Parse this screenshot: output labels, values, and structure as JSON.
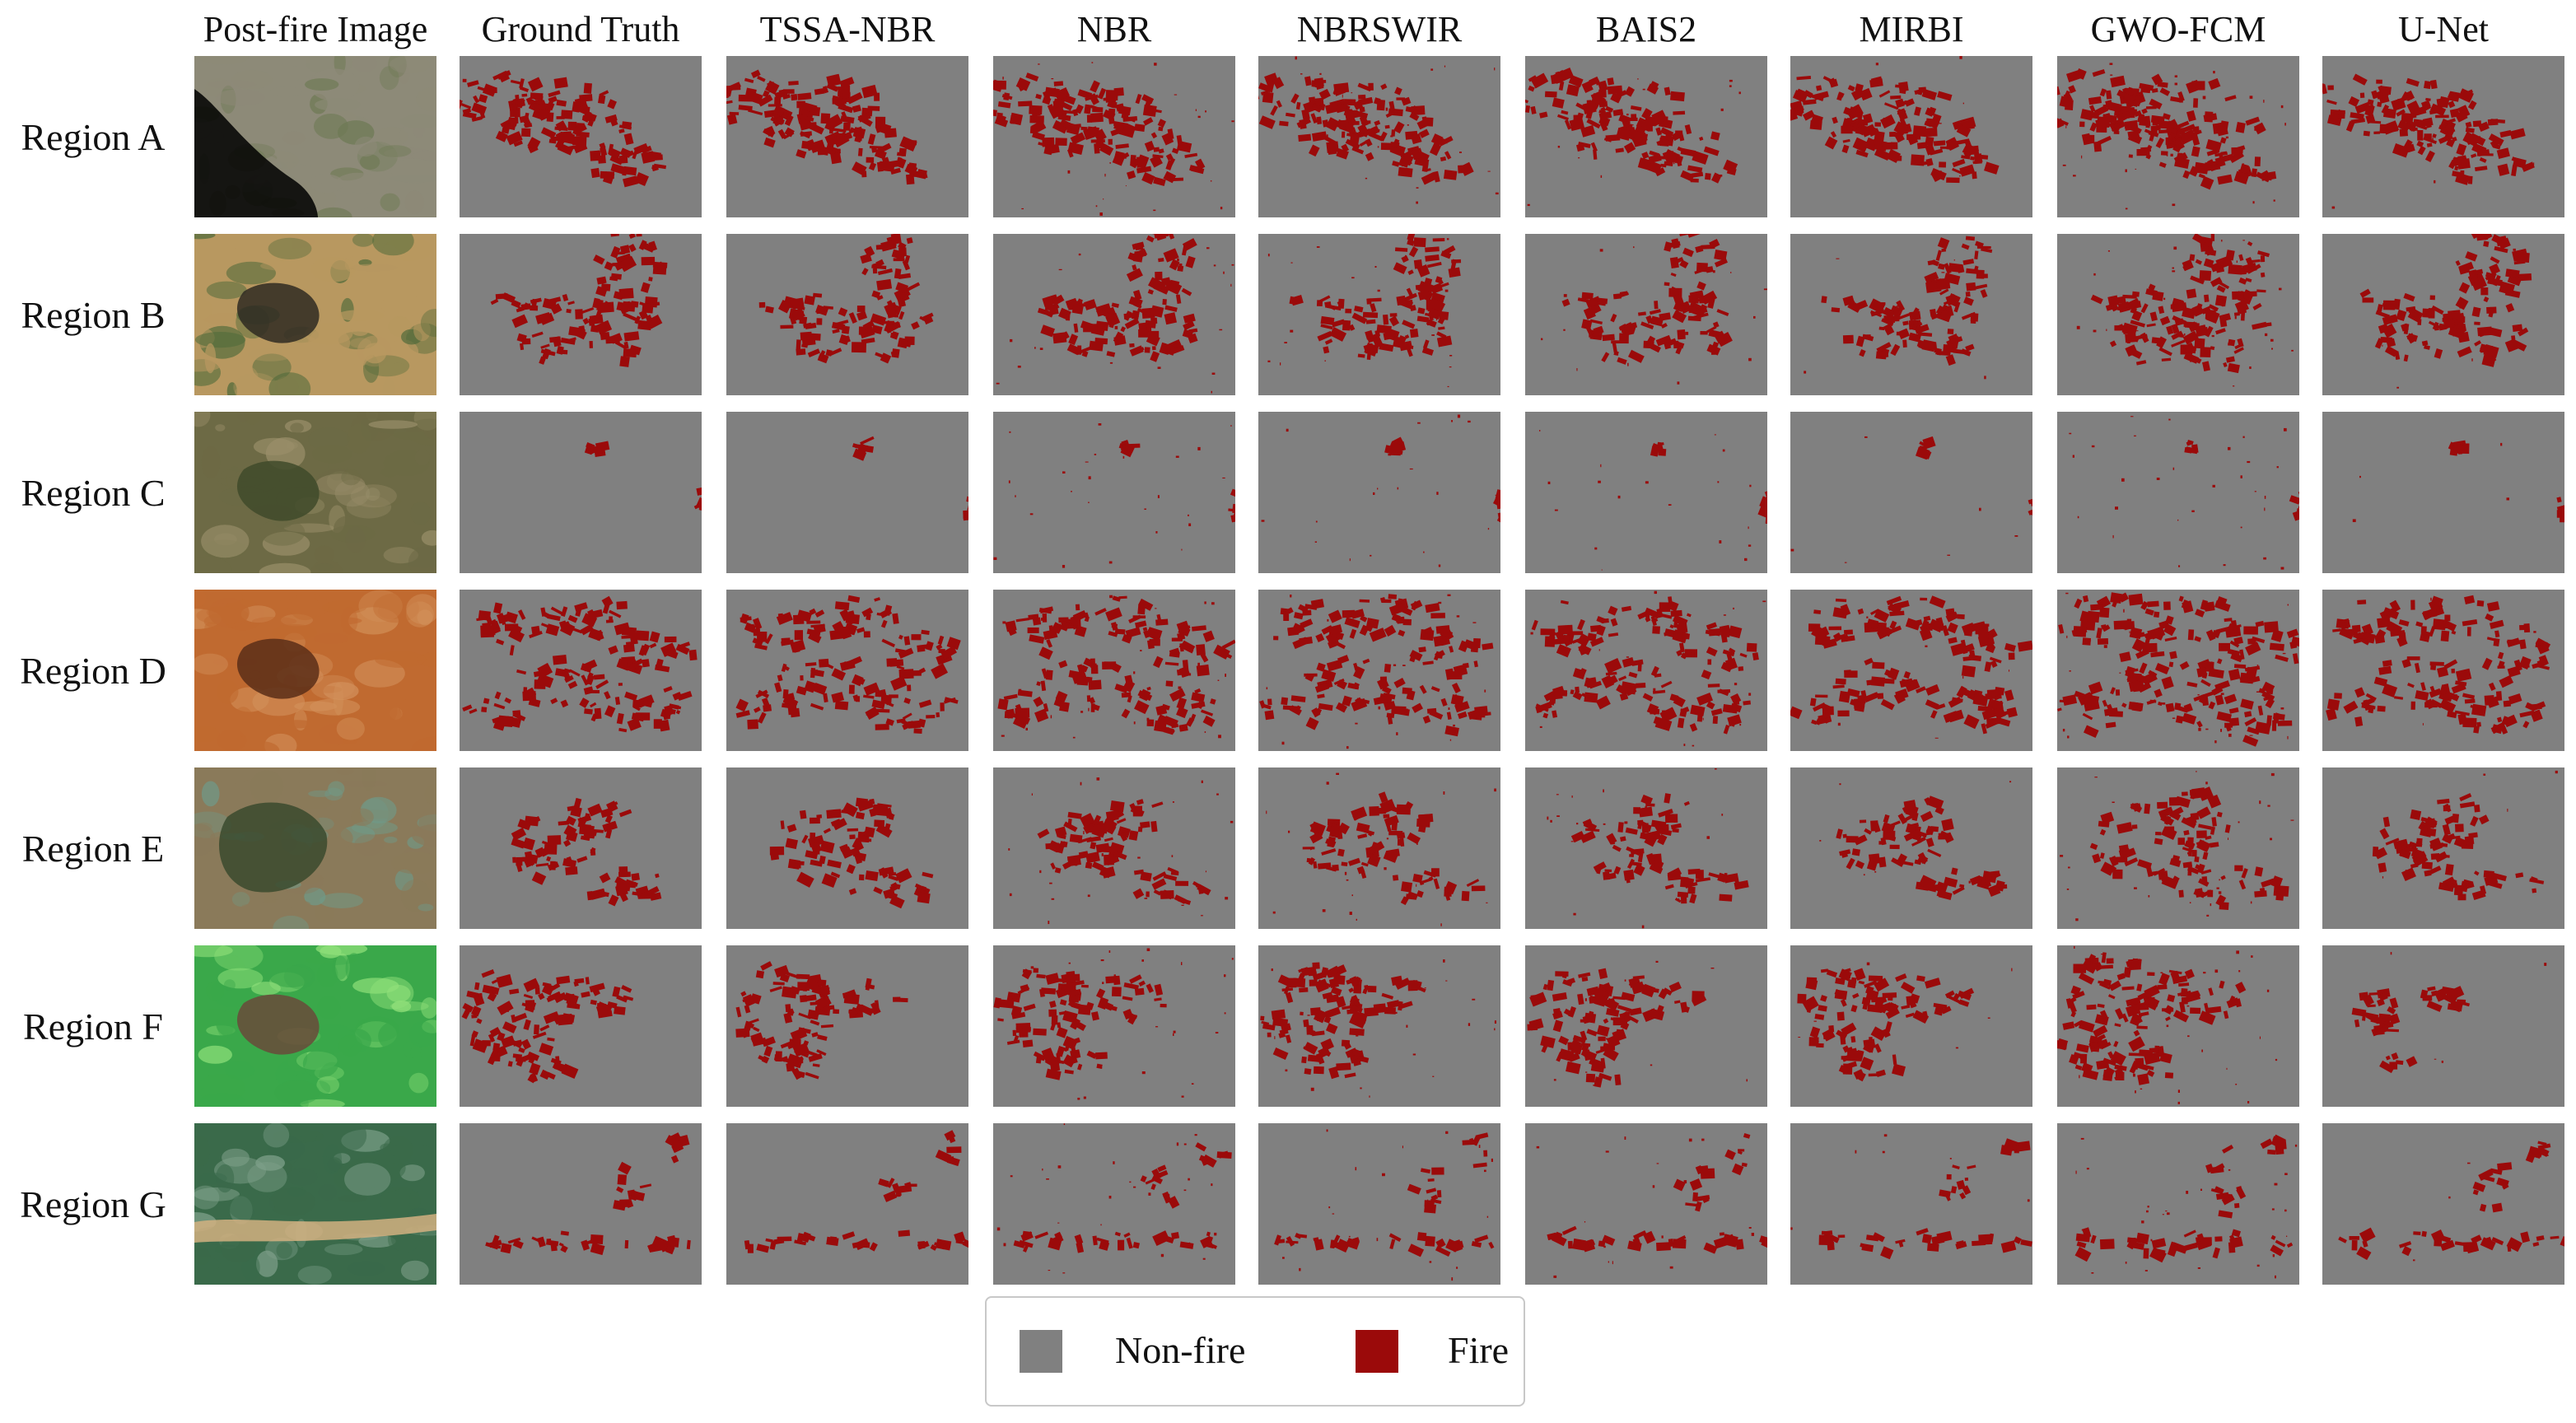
{
  "figure": {
    "columns": [
      {
        "key": "post_fire",
        "label": "Post-fire Image"
      },
      {
        "key": "ground_truth",
        "label": "Ground Truth"
      },
      {
        "key": "tssa_nbr",
        "label": "TSSA-NBR"
      },
      {
        "key": "nbr",
        "label": "NBR"
      },
      {
        "key": "nbrswir",
        "label": "NBRSWIR"
      },
      {
        "key": "bais2",
        "label": "BAIS2"
      },
      {
        "key": "mirbi",
        "label": "MIRBI"
      },
      {
        "key": "gwo_fcm",
        "label": "GWO-FCM"
      },
      {
        "key": "u_net",
        "label": "U-Net"
      }
    ],
    "rows": [
      {
        "key": "a",
        "label": "Region A",
        "photo": "coastal urban area with black ocean at lower left",
        "photo_colors": [
          "#8d8a78",
          "#000000",
          "#6f7a55"
        ]
      },
      {
        "key": "b",
        "label": "Region B",
        "photo": "tan grassland with dark burn scar",
        "photo_colors": [
          "#b89860",
          "#2f2a22",
          "#4f6a3a"
        ]
      },
      {
        "key": "c",
        "label": "Region C",
        "photo": "olive forested hills",
        "photo_colors": [
          "#6d6a45",
          "#3f4a2a",
          "#9a8f6a"
        ]
      },
      {
        "key": "d",
        "label": "Region D",
        "photo": "orange-red terrain with dark scar",
        "photo_colors": [
          "#c06a30",
          "#5a2e18",
          "#d2905a"
        ]
      },
      {
        "key": "e",
        "label": "Region E",
        "photo": "brown hills next to a green lake",
        "photo_colors": [
          "#8a7a5a",
          "#3a4a2e",
          "#6f9a88"
        ]
      },
      {
        "key": "f",
        "label": "Region F",
        "photo": "bright green vegetation with brown burned patches",
        "photo_colors": [
          "#3aa84a",
          "#6a4a3a",
          "#90e07a"
        ]
      },
      {
        "key": "g",
        "label": "Region G",
        "photo": "green forest with tan field parcels",
        "photo_colors": [
          "#3a6a4a",
          "#d2b080",
          "#7ea08a"
        ]
      }
    ]
  },
  "legend": {
    "items": [
      {
        "label": "Non-fire",
        "color": "#808080"
      },
      {
        "label": "Fire",
        "color": "#9b0a0a"
      }
    ]
  },
  "colors": {
    "fire": "#9b0a0a",
    "non_fire": "#808080",
    "background": "#ffffff"
  }
}
